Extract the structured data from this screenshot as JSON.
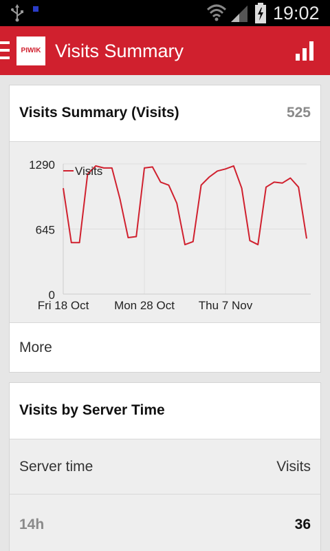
{
  "status_bar": {
    "time": "19:02",
    "icons": [
      "usb-icon",
      "notification-icon",
      "wifi-icon",
      "signal-icon",
      "battery-charging-icon"
    ]
  },
  "action_bar": {
    "logo_text": "PIWIK",
    "title": "Visits Summary",
    "menu_icon": "drawer-menu-icon",
    "action_icon": "bar-chart-icon"
  },
  "colors": {
    "brand": "#d0202e",
    "line": "#d0202e"
  },
  "summary_card": {
    "title": "Visits Summary (Visits)",
    "count": "525",
    "more_label": "More"
  },
  "chart_data": {
    "type": "line",
    "series": [
      {
        "name": "Visits",
        "values": [
          1050,
          510,
          510,
          1190,
          1270,
          1250,
          1250,
          940,
          560,
          570,
          1250,
          1260,
          1110,
          1080,
          900,
          490,
          520,
          1080,
          1160,
          1220,
          1240,
          1270,
          1050,
          530,
          490,
          1060,
          1110,
          1100,
          1150,
          1060,
          550
        ]
      }
    ],
    "x_tick_labels": [
      "Fri 18 Oct",
      "Mon 28 Oct",
      "Thu 7 Nov"
    ],
    "y_tick_labels": [
      "1290",
      "645",
      "0"
    ],
    "ylim": [
      0,
      1290
    ],
    "legend": "top-left",
    "grid": true
  },
  "server_time_card": {
    "title": "Visits by Server Time",
    "columns": [
      "Server time",
      "Visits"
    ],
    "rows": [
      {
        "label": "14h",
        "value": "36"
      }
    ]
  }
}
